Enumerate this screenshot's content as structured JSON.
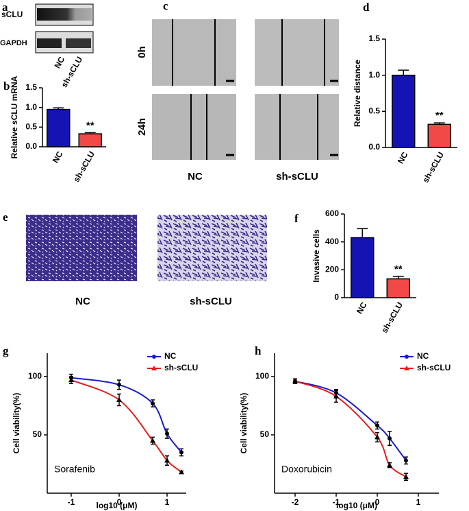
{
  "panel_labels": [
    "a",
    "b",
    "c",
    "d",
    "e",
    "f",
    "g",
    "h"
  ],
  "blot": {
    "rows": [
      "sCLU",
      "GAPDH"
    ],
    "lanes": [
      "NC",
      "sh-sCLU"
    ]
  },
  "scratch": {
    "rows": [
      "0h",
      "24h"
    ],
    "columns": [
      "NC",
      "sh-sCLU"
    ]
  },
  "transwell": {
    "columns": [
      "NC",
      "sh-sCLU"
    ]
  },
  "chart_data": [
    {
      "type": "bar",
      "y_label": "Relative sCLU mRNA",
      "categories": [
        "NC",
        "sh-sCLU"
      ],
      "values": [
        0.95,
        0.33
      ],
      "errors": [
        0.04,
        0.03
      ],
      "colors": [
        "#1414b4",
        "#f24848"
      ],
      "annotation": "**",
      "ylim": [
        0,
        1.5
      ],
      "yticks": [
        {
          "value": 0,
          "label": "0.0"
        },
        {
          "value": 0.5,
          "label": "0.5"
        },
        {
          "value": 1,
          "label": "1.0"
        },
        {
          "value": 1.5,
          "label": "1.5"
        }
      ]
    },
    {
      "type": "bar",
      "y_label": "Relative distance",
      "categories": [
        "NC",
        "sh-sCLU"
      ],
      "values": [
        1.0,
        0.32
      ],
      "errors": [
        0.07,
        0.02
      ],
      "colors": [
        "#1414b4",
        "#f24848"
      ],
      "annotation": "**",
      "ylim": [
        0,
        1.5
      ],
      "yticks": [
        {
          "value": 0,
          "label": "0.0"
        },
        {
          "value": 0.5,
          "label": "0.5"
        },
        {
          "value": 1,
          "label": "1.0"
        },
        {
          "value": 1.5,
          "label": "1.5"
        }
      ]
    },
    {
      "type": "bar",
      "y_label": "Invasive cells",
      "categories": [
        "NC",
        "sh-sCLU"
      ],
      "values": [
        430,
        135
      ],
      "errors": [
        65,
        18
      ],
      "colors": [
        "#1414b4",
        "#f24848"
      ],
      "annotation": "**",
      "ylim": [
        0,
        600
      ],
      "yticks": [
        0,
        200,
        400,
        600
      ]
    },
    {
      "type": "line",
      "x_label": "log10 (μM)",
      "y_label": "Cell viability(%)",
      "annotation": "Sorafenib",
      "legend": "upper right",
      "x": [
        -1,
        0,
        0.7,
        1,
        1.3
      ],
      "series": [
        {
          "name": "NC",
          "color": "#1a1ad0",
          "marker": "circle",
          "values": [
            99,
            93,
            77,
            51,
            35
          ],
          "errors": [
            3,
            4,
            3,
            4,
            3
          ]
        },
        {
          "name": "sh-sCLU",
          "color": "#e81c1c",
          "marker": "triangle",
          "values": [
            97,
            80,
            45,
            28,
            18
          ],
          "errors": [
            3,
            5,
            3,
            4,
            1
          ]
        }
      ],
      "xlim": [
        -1.5,
        1.4
      ],
      "xticks": [
        -1,
        0,
        1
      ],
      "ylim": [
        0,
        120
      ],
      "yticks": [
        50,
        100
      ]
    },
    {
      "type": "line",
      "x_label": "log10 (μM)",
      "y_label": "Cell viability(%)",
      "annotation": "Doxorubicin",
      "legend": "upper right",
      "x": [
        -2,
        -1,
        0,
        0.3,
        0.7
      ],
      "series": [
        {
          "name": "NC",
          "color": "#1a1ad0",
          "marker": "circle",
          "values": [
            96,
            86,
            58,
            47,
            28
          ],
          "errors": [
            2,
            3,
            3,
            6,
            3
          ]
        },
        {
          "name": "sh-sCLU",
          "color": "#e81c1c",
          "marker": "triangle",
          "values": [
            96,
            83,
            48,
            24,
            14
          ],
          "errors": [
            2,
            5,
            4,
            2,
            3
          ]
        }
      ],
      "xlim": [
        -2.5,
        1.5
      ],
      "xticks": [
        -2,
        -1,
        0,
        1
      ],
      "ylim": [
        0,
        120
      ],
      "yticks": [
        50,
        100
      ]
    }
  ]
}
